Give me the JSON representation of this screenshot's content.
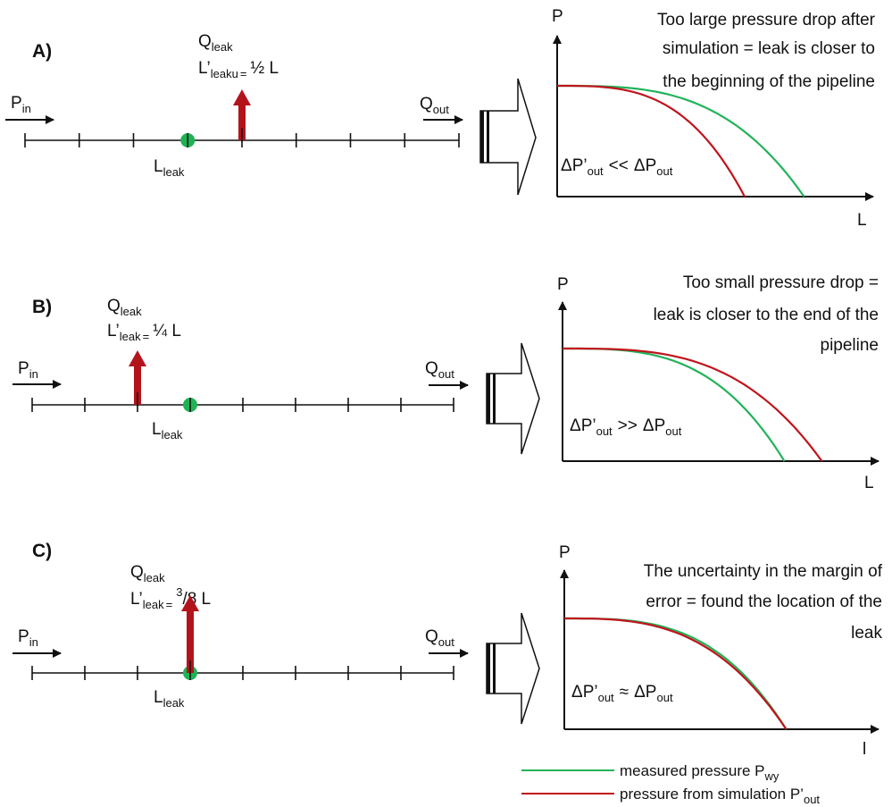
{
  "colors": {
    "measured": "#22b35a",
    "simulation": "#c0141c",
    "arrow": "#b3141c",
    "dot": "#1fb356",
    "ink": "#111111"
  },
  "panels": [
    {
      "id": "A",
      "label": "A)",
      "q_leak": {
        "main": "Q",
        "sub": "leak"
      },
      "l_prime": {
        "main": "L’",
        "sub": "leaku",
        "eq": "=",
        "value": "½ L"
      },
      "p_in": {
        "main": "P",
        "sub": "in"
      },
      "q_out": {
        "main": "Q",
        "sub": "out"
      },
      "l_leak": {
        "main": "L",
        "sub": "leak"
      },
      "ticks": 9,
      "dot_tick": 3,
      "arrow_tick": 4,
      "chart": {
        "y_axis_label": "P",
        "x_axis_label": "L",
        "description": [
          "Too large pressure drop after",
          "simulation = leak is closer to",
          "the beginning of the pipeline"
        ],
        "delta": {
          "a": "ΔP’",
          "a_sub": "out",
          "rel": "<<",
          "b": "ΔP",
          "b_sub": "out"
        },
        "measured_end": 0.79,
        "simulation_end": 0.6
      }
    },
    {
      "id": "B",
      "label": "B)",
      "q_leak": {
        "main": "Q",
        "sub": "leak"
      },
      "l_prime": {
        "main": "L’",
        "sub": "leak",
        "eq": "=",
        "value": "¼ L"
      },
      "p_in": {
        "main": "P",
        "sub": "in"
      },
      "q_out": {
        "main": "Q",
        "sub": "out"
      },
      "l_leak": {
        "main": "L",
        "sub": "leak"
      },
      "ticks": 9,
      "dot_tick": 3,
      "arrow_tick": 2,
      "chart": {
        "y_axis_label": "P",
        "x_axis_label": "L",
        "description": [
          "Too small pressure drop =",
          "leak is closer to the end of the",
          "pipeline"
        ],
        "delta": {
          "a": "ΔP’",
          "a_sub": "out",
          "rel": ">>",
          "b": "ΔP",
          "b_sub": "out"
        },
        "measured_end": 0.71,
        "simulation_end": 0.83
      }
    },
    {
      "id": "C",
      "label": "C)",
      "q_leak": {
        "main": "Q",
        "sub": "leak"
      },
      "l_prime": {
        "main": "L’",
        "sub": "leak",
        "eq": "=",
        "value_sup": "3",
        "value": "/8 L"
      },
      "p_in": {
        "main": "P",
        "sub": "in"
      },
      "q_out": {
        "main": "Q",
        "sub": "out"
      },
      "l_leak": {
        "main": "L",
        "sub": "leak"
      },
      "ticks": 9,
      "dot_tick": 3,
      "arrow_tick": 3,
      "chart": {
        "y_axis_label": "P",
        "x_axis_label": "l",
        "description": [
          "The uncertainty in the margin of",
          "error = found the location of the",
          "leak"
        ],
        "delta": {
          "a": "ΔP’",
          "a_sub": "out",
          "rel": "≈",
          "b": "ΔP",
          "b_sub": "out"
        },
        "measured_end": 0.71,
        "simulation_end": 0.71
      }
    }
  ],
  "legend": [
    {
      "color_key": "measured",
      "text": "measured pressure P",
      "sub": "wy"
    },
    {
      "color_key": "simulation",
      "text": "pressure from simulation P’",
      "sub": "out"
    }
  ]
}
